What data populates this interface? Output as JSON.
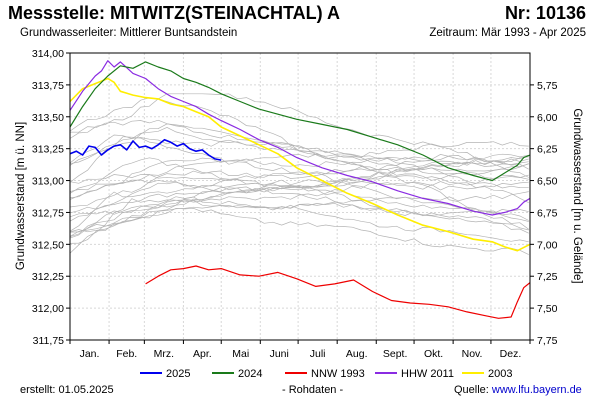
{
  "header": {
    "title": "Messstelle: MITWITZ(STEINACHTAL) A",
    "nr": "Nr: 10136",
    "aquifer": "Grundwasserleiter:   Mittlerer Buntsandstein",
    "period": "Zeitraum: Mär 1993 - Apr 2025"
  },
  "footer": {
    "created": "erstellt:  01.05.2025",
    "rawdata": "- Rohdaten -",
    "source_prefix": "Quelle: ",
    "source_link": "www.lfu.bayern.de"
  },
  "chart_data": {
    "type": "line",
    "xlabel": "",
    "ylabel": "Grundwasserstand [m ü. NN]",
    "y2label": "Grundwasserstand [m u. Gelände]",
    "months": [
      "Jan.",
      "Feb.",
      "Mrz.",
      "Apr.",
      "Mai",
      "Juni",
      "Juli",
      "Aug.",
      "Sept.",
      "Okt.",
      "Nov.",
      "Dez."
    ],
    "xlim": [
      0,
      365
    ],
    "ylim": [
      311.75,
      314.0
    ],
    "yticks": [
      "311,75",
      "312,00",
      "312,25",
      "312,50",
      "312,75",
      "313,00",
      "313,25",
      "313,50",
      "313,75",
      "314,00"
    ],
    "y2ticks": [
      "5,75",
      "6,00",
      "6,25",
      "6,50",
      "6,75",
      "7,00",
      "7,25",
      "7,50",
      "7,75"
    ],
    "y2_reference_level": 319.5,
    "grid": true,
    "legend_position": "bottom",
    "colors": {
      "y2025": "#0000ee",
      "y2024": "#1a7a1a",
      "nnw1993": "#ee0000",
      "hhw2011": "#8a2be2",
      "y2003": "#ffee00",
      "background_years": "#b4b4b4"
    },
    "series": [
      {
        "name": "2025",
        "key": "y2025",
        "width": 1.6,
        "x": [
          0,
          5,
          10,
          15,
          20,
          25,
          30,
          35,
          40,
          45,
          50,
          55,
          60,
          65,
          70,
          75,
          80,
          85,
          90,
          95,
          100,
          105,
          110,
          115,
          120
        ],
        "y": [
          313.21,
          313.23,
          313.2,
          313.27,
          313.26,
          313.2,
          313.24,
          313.27,
          313.28,
          313.24,
          313.31,
          313.26,
          313.27,
          313.25,
          313.28,
          313.32,
          313.3,
          313.27,
          313.29,
          313.25,
          313.23,
          313.24,
          313.2,
          313.17,
          313.16
        ]
      },
      {
        "name": "2024",
        "key": "y2024",
        "width": 1.2,
        "x": [
          0,
          10,
          20,
          30,
          40,
          50,
          60,
          70,
          80,
          90,
          100,
          110,
          120,
          135,
          150,
          165,
          180,
          200,
          220,
          240,
          260,
          280,
          300,
          320,
          335,
          345,
          355,
          360,
          365
        ],
        "y": [
          313.42,
          313.58,
          313.72,
          313.82,
          313.9,
          313.88,
          313.93,
          313.89,
          313.86,
          313.8,
          313.77,
          313.73,
          313.68,
          313.62,
          313.56,
          313.52,
          313.48,
          313.44,
          313.4,
          313.34,
          313.28,
          313.2,
          313.1,
          313.04,
          313.0,
          313.06,
          313.12,
          313.18,
          313.2
        ]
      },
      {
        "name": "NNW 1993",
        "key": "nnw1993",
        "width": 1.2,
        "x": [
          60,
          70,
          80,
          90,
          100,
          110,
          120,
          135,
          150,
          165,
          180,
          195,
          210,
          225,
          240,
          255,
          270,
          285,
          300,
          315,
          330,
          340,
          350,
          355,
          360,
          365
        ],
        "y": [
          312.19,
          312.25,
          312.3,
          312.31,
          312.33,
          312.3,
          312.31,
          312.26,
          312.25,
          312.28,
          312.23,
          312.17,
          312.19,
          312.22,
          312.13,
          312.06,
          312.04,
          312.03,
          312.01,
          311.97,
          311.94,
          311.92,
          311.93,
          312.05,
          312.16,
          312.2
        ]
      },
      {
        "name": "HHW 2011",
        "key": "hhw2011",
        "width": 1.2,
        "x": [
          0,
          10,
          20,
          25,
          30,
          35,
          40,
          50,
          60,
          70,
          80,
          90,
          100,
          110,
          120,
          135,
          150,
          165,
          180,
          200,
          220,
          240,
          260,
          280,
          300,
          320,
          335,
          345,
          355,
          360,
          365
        ],
        "y": [
          313.55,
          313.7,
          313.82,
          313.86,
          313.94,
          313.89,
          313.93,
          313.84,
          313.8,
          313.72,
          313.66,
          313.62,
          313.58,
          313.52,
          313.47,
          313.4,
          313.32,
          313.26,
          313.18,
          313.1,
          313.04,
          312.99,
          312.92,
          312.86,
          312.82,
          312.76,
          312.73,
          312.75,
          312.78,
          312.83,
          312.86
        ]
      },
      {
        "name": "2003",
        "key": "y2003",
        "width": 1.6,
        "x": [
          0,
          10,
          20,
          25,
          30,
          35,
          40,
          50,
          60,
          70,
          80,
          90,
          100,
          110,
          120,
          135,
          150,
          165,
          180,
          200,
          220,
          240,
          260,
          280,
          300,
          320,
          335,
          345,
          355,
          365
        ],
        "y": [
          313.62,
          313.72,
          313.76,
          313.78,
          313.8,
          313.77,
          313.7,
          313.67,
          313.65,
          313.64,
          313.6,
          313.58,
          313.54,
          313.5,
          313.42,
          313.35,
          313.28,
          313.21,
          313.1,
          313.0,
          312.9,
          312.82,
          312.73,
          312.65,
          312.6,
          312.54,
          312.52,
          312.48,
          312.45,
          312.5
        ]
      }
    ]
  }
}
